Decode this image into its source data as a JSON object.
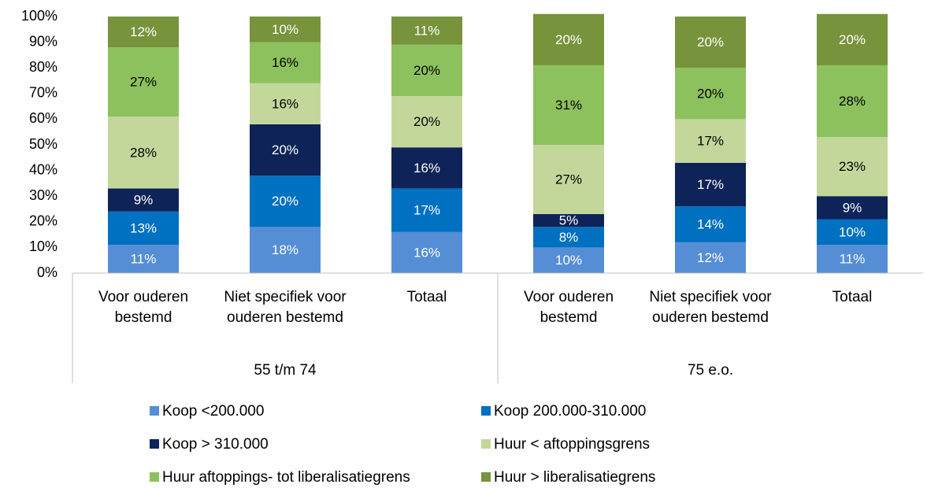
{
  "chart_data": {
    "type": "stacked_bar",
    "groups": [
      {
        "label": "55 t/m 74",
        "categories": [
          "Voor ouderen bestemd",
          "Niet specifiek voor ouderen bestemd",
          "Totaal"
        ]
      },
      {
        "label": "75 e.o.",
        "categories": [
          "Voor ouderen bestemd",
          "Niet specifiek voor ouderen bestemd",
          "Totaal"
        ]
      }
    ],
    "series": [
      {
        "name": "Koop <200.000",
        "color": "#558ed5",
        "label_color": "#ffffff",
        "values": [
          11,
          18,
          16,
          10,
          12,
          11
        ]
      },
      {
        "name": "Koop 200.000-310.000",
        "color": "#0070c0",
        "label_color": "#ffffff",
        "values": [
          13,
          20,
          17,
          8,
          14,
          10
        ]
      },
      {
        "name": "Koop > 310.000",
        "color": "#0e2357",
        "label_color": "#ffffff",
        "values": [
          9,
          20,
          16,
          5,
          17,
          9
        ]
      },
      {
        "name": "Huur < aftoppingsgrens",
        "color": "#c4d79b",
        "label_color": "#000000",
        "values": [
          28,
          16,
          20,
          27,
          17,
          23
        ]
      },
      {
        "name": "Huur aftoppings- tot liberalisatiegrens",
        "color": "#8dc15e",
        "label_color": "#000000",
        "values": [
          27,
          16,
          20,
          31,
          20,
          28
        ]
      },
      {
        "name": "Huur > liberalisatiegrens",
        "color": "#77933c",
        "label_color": "#ffffff",
        "values": [
          12,
          10,
          11,
          20,
          20,
          20
        ]
      }
    ],
    "value_labels": [
      [
        "11%",
        "18%",
        "16%",
        "10%",
        "12%",
        "11%"
      ],
      [
        "13%",
        "20%",
        "17%",
        "8%",
        "14%",
        "10%"
      ],
      [
        "9%",
        "20%",
        "16%",
        "5%",
        "17%",
        "9%"
      ],
      [
        "28%",
        "16%",
        "20%",
        "27%",
        "17%",
        "23%"
      ],
      [
        "27%",
        "16%",
        "20%",
        "31%",
        "20%",
        "28%"
      ],
      [
        "12%",
        "10%",
        "11%",
        "20%",
        "20%",
        "20%"
      ]
    ],
    "ylim": [
      0,
      100
    ],
    "yticks": [
      {
        "value": 0,
        "label": "0%"
      },
      {
        "value": 10,
        "label": "10%"
      },
      {
        "value": 20,
        "label": "20%"
      },
      {
        "value": 30,
        "label": "30%"
      },
      {
        "value": 40,
        "label": "40%"
      },
      {
        "value": 50,
        "label": "50%"
      },
      {
        "value": 60,
        "label": "60%"
      },
      {
        "value": 70,
        "label": "70%"
      },
      {
        "value": 80,
        "label": "80%"
      },
      {
        "value": 90,
        "label": "90%"
      },
      {
        "value": 100,
        "label": "100%"
      }
    ],
    "legend": "bottom"
  }
}
